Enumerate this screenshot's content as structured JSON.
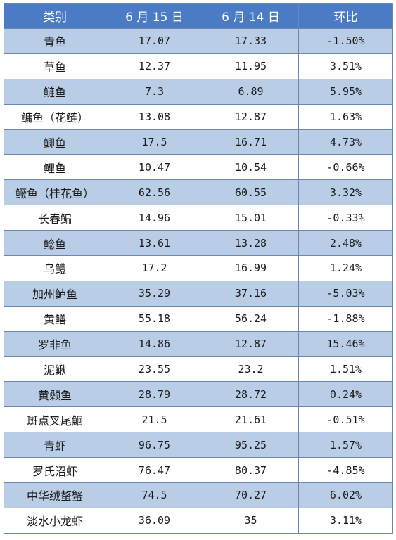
{
  "table": {
    "headers": [
      "类别",
      "6 月 15 日",
      "6 月 14 日",
      "环比"
    ],
    "rows": [
      [
        "青鱼",
        "17.07",
        "17.33",
        "-1.50%"
      ],
      [
        "草鱼",
        "12.37",
        "11.95",
        "3.51%"
      ],
      [
        "鲢鱼",
        "7.3",
        "6.89",
        "5.95%"
      ],
      [
        "鳙鱼（花鲢）",
        "13.08",
        "12.87",
        "1.63%"
      ],
      [
        "鲫鱼",
        "17.5",
        "16.71",
        "4.73%"
      ],
      [
        "鲤鱼",
        "10.47",
        "10.54",
        "-0.66%"
      ],
      [
        "鳜鱼（桂花鱼）",
        "62.56",
        "60.55",
        "3.32%"
      ],
      [
        "长春鳊",
        "14.96",
        "15.01",
        "-0.33%"
      ],
      [
        "鲶鱼",
        "13.61",
        "13.28",
        "2.48%"
      ],
      [
        "乌鳢",
        "17.2",
        "16.99",
        "1.24%"
      ],
      [
        "加州鲈鱼",
        "35.29",
        "37.16",
        "-5.03%"
      ],
      [
        "黄鳝",
        "55.18",
        "56.24",
        "-1.88%"
      ],
      [
        "罗非鱼",
        "14.86",
        "12.87",
        "15.46%"
      ],
      [
        "泥鳅",
        "23.55",
        "23.2",
        "1.51%"
      ],
      [
        "黄颡鱼",
        "28.79",
        "28.72",
        "0.24%"
      ],
      [
        "斑点叉尾鮰",
        "21.5",
        "21.61",
        "-0.51%"
      ],
      [
        "青虾",
        "96.75",
        "95.25",
        "1.57%"
      ],
      [
        "罗氏沼虾",
        "76.47",
        "80.37",
        "-4.85%"
      ],
      [
        "中华绒螯蟹",
        "74.5",
        "70.27",
        "6.02%"
      ],
      [
        "淡水小龙虾",
        "36.09",
        "35",
        "3.11%"
      ]
    ]
  }
}
